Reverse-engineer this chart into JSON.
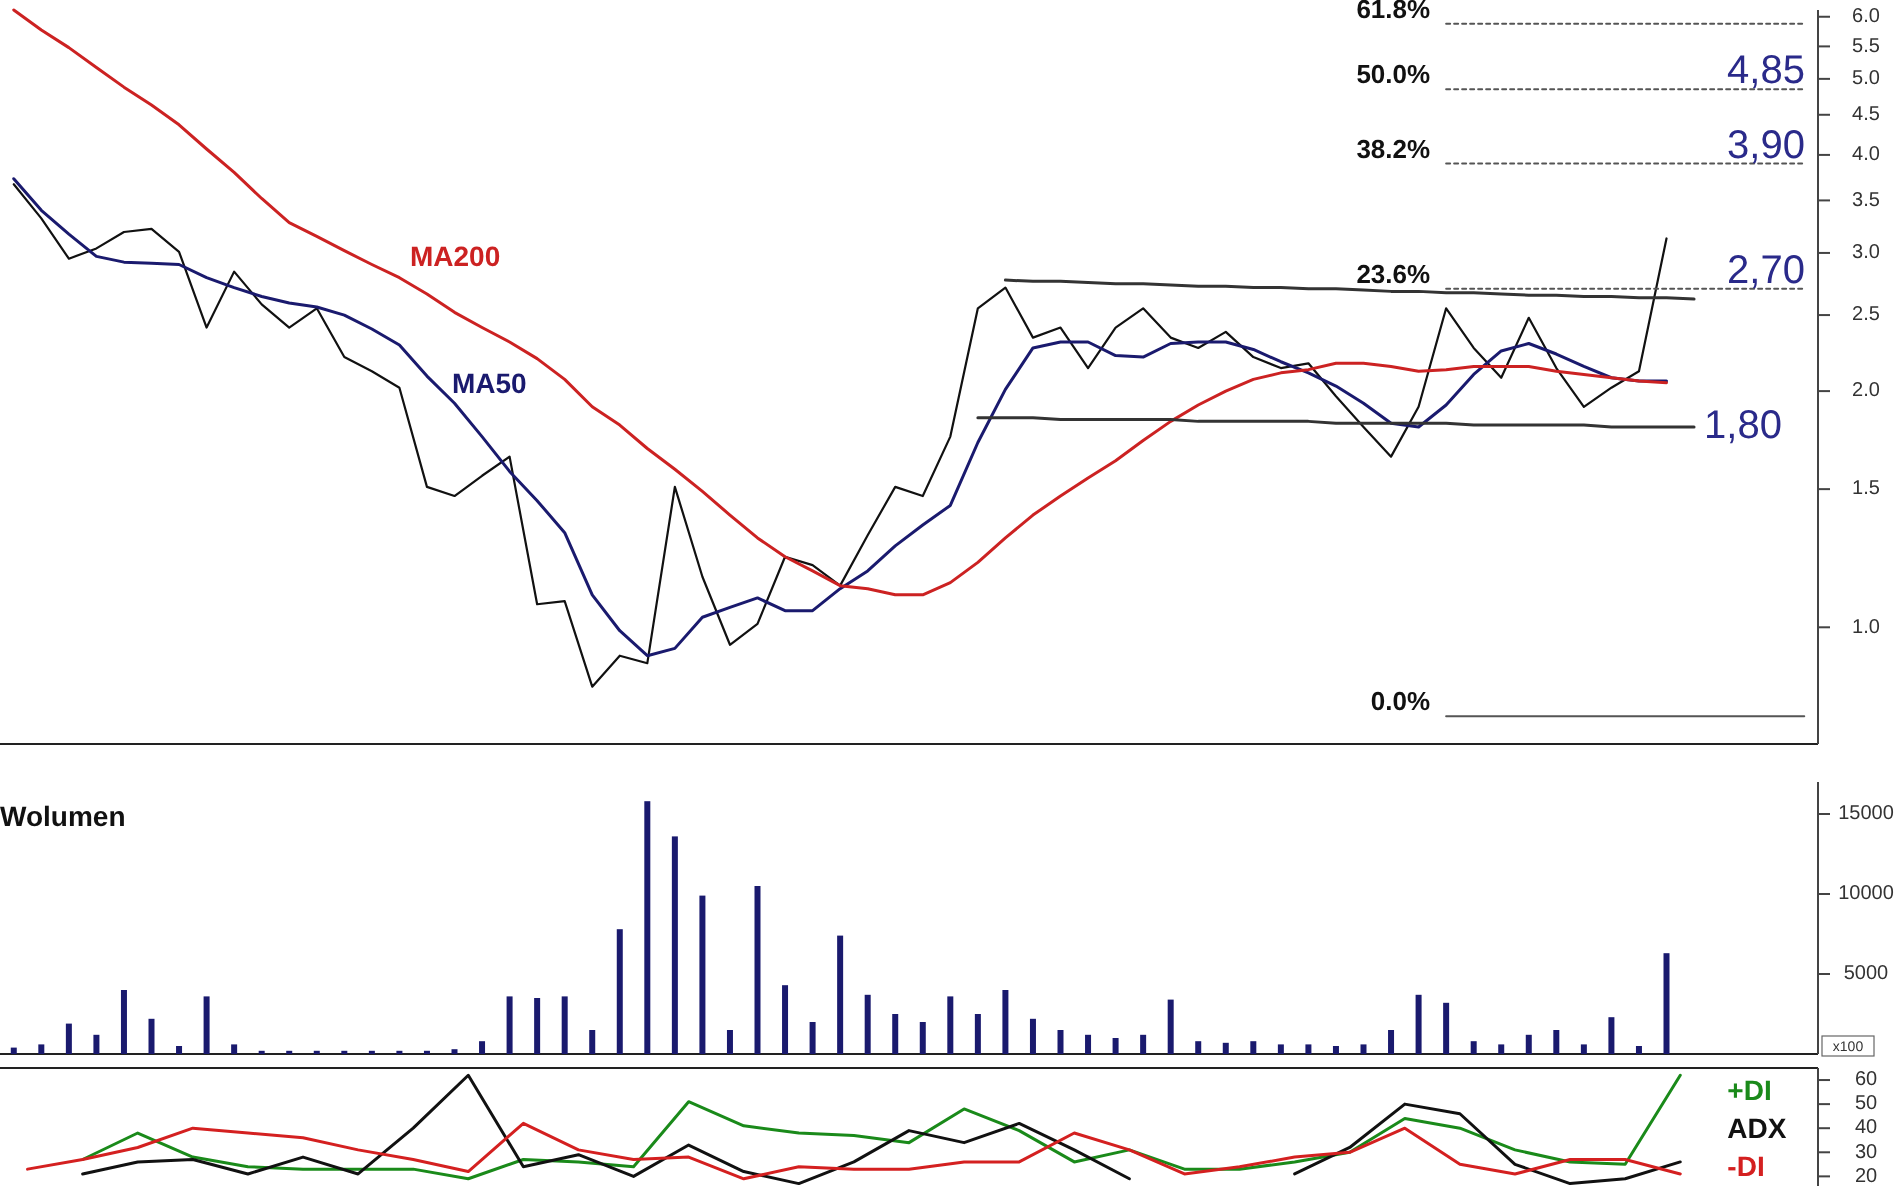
{
  "chart_data": [
    {
      "type": "line",
      "categories": [
        null,
        null,
        null,
        null,
        null,
        null,
        null,
        null,
        null,
        null,
        null,
        null,
        null,
        null,
        null,
        null,
        null,
        null,
        null,
        null,
        null,
        null,
        null,
        null,
        null,
        null,
        null,
        null,
        null,
        null,
        null,
        null,
        null,
        null,
        null,
        null,
        null,
        null,
        null,
        null,
        null,
        null,
        null,
        null,
        null,
        null,
        null,
        null,
        null,
        null,
        null,
        null,
        null,
        null,
        null,
        null,
        null,
        null,
        null,
        null,
        null,
        null,
        null,
        null,
        null,
        null
      ],
      "ylim": [
        0.71,
        6.12
      ],
      "log": true,
      "tick_labels": "y",
      "yticks": [
        {
          "value": 1,
          "label": "1.0"
        },
        {
          "value": 1.5,
          "label": "1.5"
        },
        {
          "value": 2,
          "label": "2.0"
        },
        {
          "value": 2.5,
          "label": "2.5"
        },
        {
          "value": 3,
          "label": "3.0"
        },
        {
          "value": 3.5,
          "label": "3.5"
        },
        {
          "value": 4,
          "label": "4.0"
        },
        {
          "value": 4.5,
          "label": "4.5"
        },
        {
          "value": 5,
          "label": "5.0"
        },
        {
          "value": 5.5,
          "label": "5.5"
        },
        {
          "value": 6,
          "label": "6.0"
        }
      ],
      "series": [
        {
          "color": "#111111",
          "values": [
            3.67,
            3.32,
            2.95,
            3.04,
            3.19,
            3.22,
            3.01,
            2.41,
            2.84,
            2.58,
            2.41,
            2.55,
            2.21,
            2.12,
            2.02,
            1.51,
            1.47,
            1.56,
            1.65,
            1.07,
            1.08,
            0.84,
            0.92,
            0.9,
            1.51,
            1.16,
            0.95,
            1.01,
            1.23,
            1.2,
            1.13,
            1.31,
            1.51,
            1.47,
            1.75,
            2.55,
            2.71,
            2.34,
            2.41,
            2.14,
            2.41,
            2.55,
            2.34,
            2.27,
            2.38,
            2.21,
            2.14,
            2.17,
            1.97,
            1.8,
            1.65,
            1.91,
            2.55,
            2.27,
            2.08,
            2.48,
            2.14,
            1.91,
            2.02,
            2.12,
            3.13,
            null,
            null,
            null,
            null,
            null
          ]
        },
        {
          "name": "MA50",
          "color": "#1a1a6e",
          "values": [
            3.73,
            3.4,
            3.17,
            2.97,
            2.92,
            2.91,
            2.9,
            2.79,
            2.71,
            2.64,
            2.59,
            2.56,
            2.5,
            2.4,
            2.29,
            2.09,
            1.93,
            1.75,
            1.58,
            1.45,
            1.32,
            1.1,
            0.99,
            0.92,
            0.94,
            1.03,
            1.06,
            1.09,
            1.05,
            1.05,
            1.12,
            1.18,
            1.27,
            1.35,
            1.43,
            1.72,
            2.01,
            2.27,
            2.31,
            2.31,
            2.22,
            2.21,
            2.3,
            2.31,
            2.31,
            2.26,
            2.18,
            2.11,
            2.03,
            1.93,
            1.82,
            1.8,
            1.92,
            2.1,
            2.25,
            2.3,
            2.23,
            2.15,
            2.08,
            2.06,
            2.06,
            null,
            null,
            null,
            null,
            null
          ]
        },
        {
          "name": "MA200",
          "color": "#cc2222",
          "values": [
            6.12,
            5.77,
            5.48,
            5.17,
            4.88,
            4.63,
            4.37,
            4.07,
            3.8,
            3.52,
            3.28,
            3.15,
            3.02,
            2.9,
            2.79,
            2.66,
            2.52,
            2.41,
            2.31,
            2.2,
            2.07,
            1.91,
            1.81,
            1.69,
            1.59,
            1.49,
            1.39,
            1.3,
            1.23,
            1.18,
            1.13,
            1.12,
            1.1,
            1.1,
            1.14,
            1.21,
            1.3,
            1.39,
            1.47,
            1.55,
            1.63,
            1.73,
            1.83,
            1.92,
            2.0,
            2.07,
            2.11,
            2.13,
            2.17,
            2.17,
            2.15,
            2.12,
            2.13,
            2.15,
            2.15,
            2.15,
            2.12,
            2.1,
            2.08,
            2.06,
            2.05,
            null,
            null,
            null,
            null,
            null
          ]
        },
        {
          "color": "#333333",
          "values": [
            null,
            null,
            null,
            null,
            null,
            null,
            null,
            null,
            null,
            null,
            null,
            null,
            null,
            null,
            null,
            null,
            null,
            null,
            null,
            null,
            null,
            null,
            null,
            null,
            null,
            null,
            null,
            null,
            null,
            null,
            null,
            null,
            null,
            null,
            null,
            null,
            2.77,
            2.76,
            2.76,
            2.75,
            2.74,
            2.74,
            2.73,
            2.72,
            2.72,
            2.71,
            2.71,
            2.7,
            2.7,
            2.69,
            2.68,
            2.68,
            2.67,
            2.67,
            2.66,
            2.65,
            2.65,
            2.64,
            2.64,
            2.63,
            2.63,
            2.62,
            null,
            null,
            null,
            null
          ]
        },
        {
          "color": "#333333",
          "values": [
            null,
            null,
            null,
            null,
            null,
            null,
            null,
            null,
            null,
            null,
            null,
            null,
            null,
            null,
            null,
            null,
            null,
            null,
            null,
            null,
            null,
            null,
            null,
            null,
            null,
            null,
            null,
            null,
            null,
            null,
            null,
            null,
            null,
            null,
            null,
            1.85,
            1.85,
            1.85,
            1.84,
            1.84,
            1.84,
            1.84,
            1.84,
            1.83,
            1.83,
            1.83,
            1.83,
            1.83,
            1.82,
            1.82,
            1.82,
            1.82,
            1.82,
            1.81,
            1.81,
            1.81,
            1.81,
            1.81,
            1.8,
            1.8,
            1.8,
            1.8,
            null,
            null,
            null,
            null
          ]
        },
        {
          "name": "61.8%",
          "color": "#555555",
          "line_style": "dotted",
          "values": [
            null,
            null,
            null,
            null,
            null,
            null,
            null,
            null,
            null,
            null,
            null,
            null,
            null,
            null,
            null,
            null,
            null,
            null,
            null,
            null,
            null,
            null,
            null,
            null,
            null,
            null,
            null,
            null,
            null,
            null,
            null,
            null,
            null,
            null,
            null,
            null,
            null,
            null,
            null,
            null,
            null,
            null,
            null,
            null,
            null,
            null,
            null,
            null,
            null,
            null,
            null,
            null,
            5.88,
            5.88,
            5.88,
            5.88,
            5.88,
            5.88,
            5.88,
            5.88,
            5.88,
            5.88,
            5.88,
            5.88,
            5.88,
            5.88
          ]
        },
        {
          "name": "50.0%",
          "color": "#555555",
          "line_style": "dotted",
          "values": [
            null,
            null,
            null,
            null,
            null,
            null,
            null,
            null,
            null,
            null,
            null,
            null,
            null,
            null,
            null,
            null,
            null,
            null,
            null,
            null,
            null,
            null,
            null,
            null,
            null,
            null,
            null,
            null,
            null,
            null,
            null,
            null,
            null,
            null,
            null,
            null,
            null,
            null,
            null,
            null,
            null,
            null,
            null,
            null,
            null,
            null,
            null,
            null,
            null,
            null,
            null,
            null,
            4.85,
            4.85,
            4.85,
            4.85,
            4.85,
            4.85,
            4.85,
            4.85,
            4.85,
            4.85,
            4.85,
            4.85,
            4.85,
            4.85
          ]
        },
        {
          "name": "38.2%",
          "color": "#555555",
          "line_style": "dotted",
          "values": [
            null,
            null,
            null,
            null,
            null,
            null,
            null,
            null,
            null,
            null,
            null,
            null,
            null,
            null,
            null,
            null,
            null,
            null,
            null,
            null,
            null,
            null,
            null,
            null,
            null,
            null,
            null,
            null,
            null,
            null,
            null,
            null,
            null,
            null,
            null,
            null,
            null,
            null,
            null,
            null,
            null,
            null,
            null,
            null,
            null,
            null,
            null,
            null,
            null,
            null,
            null,
            null,
            3.9,
            3.9,
            3.9,
            3.9,
            3.9,
            3.9,
            3.9,
            3.9,
            3.9,
            3.9,
            3.9,
            3.9,
            3.9,
            3.9
          ]
        },
        {
          "name": "23.6%",
          "color": "#555555",
          "line_style": "dotted",
          "values": [
            null,
            null,
            null,
            null,
            null,
            null,
            null,
            null,
            null,
            null,
            null,
            null,
            null,
            null,
            null,
            null,
            null,
            null,
            null,
            null,
            null,
            null,
            null,
            null,
            null,
            null,
            null,
            null,
            null,
            null,
            null,
            null,
            null,
            null,
            null,
            null,
            null,
            null,
            null,
            null,
            null,
            null,
            null,
            null,
            null,
            null,
            null,
            null,
            null,
            null,
            null,
            null,
            2.7,
            2.7,
            2.7,
            2.7,
            2.7,
            2.7,
            2.7,
            2.7,
            2.7,
            2.7,
            2.7,
            2.7,
            2.7,
            2.7
          ]
        },
        {
          "name": "0.0%",
          "color": "#555555",
          "line_style": "solid",
          "values": [
            null,
            null,
            null,
            null,
            null,
            null,
            null,
            null,
            null,
            null,
            null,
            null,
            null,
            null,
            null,
            null,
            null,
            null,
            null,
            null,
            null,
            null,
            null,
            null,
            null,
            null,
            null,
            null,
            null,
            null,
            null,
            null,
            null,
            null,
            null,
            null,
            null,
            null,
            null,
            null,
            null,
            null,
            null,
            null,
            null,
            null,
            null,
            null,
            null,
            null,
            null,
            null,
            0.77,
            0.77,
            0.77,
            0.77,
            0.77,
            0.77,
            0.77,
            0.77,
            0.77,
            0.77,
            0.77,
            0.77,
            0.77,
            0.77
          ]
        }
      ],
      "annotations": [
        {
          "text": "4,85",
          "y": 4.85
        },
        {
          "text": "3,90",
          "y": 3.9
        },
        {
          "text": "2,70",
          "y": 2.7
        },
        "1,80"
      ]
    },
    {
      "type": "bar",
      "title": "Wolumen",
      "categories": [
        null,
        null,
        null,
        null,
        null,
        null,
        null,
        null,
        null,
        null,
        null,
        null,
        null,
        null,
        null,
        null,
        null,
        null,
        null,
        null,
        null,
        null,
        null,
        null,
        null,
        null,
        null,
        null,
        null,
        null,
        null,
        null,
        null,
        null,
        null,
        null,
        null,
        null,
        null,
        null,
        null,
        null,
        null,
        null,
        null,
        null,
        null,
        null,
        null,
        null,
        null,
        null,
        null,
        null,
        null,
        null,
        null,
        null,
        null,
        null,
        null,
        null,
        null,
        null,
        null,
        null
      ],
      "ylim": [
        0,
        17000
      ],
      "yticks": [
        5000,
        10000,
        15000
      ],
      "tick_labels": "y",
      "color": "#1a1a6e",
      "values": [
        400,
        600,
        1900,
        1200,
        4000,
        2200,
        500,
        3600,
        600,
        200,
        200,
        200,
        200,
        200,
        200,
        200,
        300,
        800,
        3600,
        3500,
        3600,
        1500,
        7800,
        15800,
        13600,
        9900,
        1500,
        10500,
        4300,
        2000,
        7400,
        3700,
        2500,
        2000,
        3600,
        2500,
        4000,
        2200,
        1500,
        1200,
        1000,
        1200,
        3400,
        800,
        700,
        800,
        600,
        600,
        500,
        600,
        1500,
        3700,
        3200,
        800,
        600,
        1200,
        1500,
        600,
        2300,
        500,
        6300,
        null,
        null,
        null,
        null,
        null
      ],
      "annotations": [
        "x100"
      ]
    },
    {
      "type": "line",
      "categories": [
        null,
        null,
        null,
        null,
        null,
        null,
        null,
        null,
        null,
        null,
        null,
        null,
        null,
        null,
        null,
        null,
        null,
        null,
        null,
        null,
        null,
        null,
        null,
        null,
        null,
        null,
        null,
        null,
        null,
        null,
        null,
        null,
        null
      ],
      "ylim": [
        16,
        65
      ],
      "yticks": [
        20,
        30,
        40,
        50,
        60
      ],
      "tick_labels": "y",
      "series": [
        {
          "name": "+DI",
          "color": "#1a8a1a",
          "values": [
            null,
            27,
            38,
            28,
            24,
            23,
            23,
            23,
            19,
            27,
            26,
            24,
            51,
            41,
            38,
            37,
            34,
            48,
            39,
            26,
            31,
            23,
            23,
            26,
            30,
            44,
            40,
            31,
            26,
            25,
            62,
            null,
            null
          ]
        },
        {
          "name": "ADX",
          "color": "#111111",
          "values": [
            null,
            21,
            26,
            27,
            21,
            28,
            21,
            40,
            62,
            24,
            29,
            20,
            33,
            22,
            17,
            26,
            39,
            34,
            42,
            31,
            19,
            null,
            null,
            21,
            32,
            50,
            46,
            25,
            17,
            19,
            26,
            null,
            null
          ]
        },
        {
          "name": "-DI",
          "color": "#d42020",
          "values": [
            23,
            27,
            32,
            40,
            38,
            36,
            31,
            27,
            22,
            42,
            31,
            27,
            28,
            19,
            24,
            23,
            23,
            26,
            26,
            38,
            31,
            21,
            24,
            28,
            30,
            40,
            25,
            21,
            27,
            27,
            21,
            null,
            null
          ]
        }
      ]
    }
  ]
}
